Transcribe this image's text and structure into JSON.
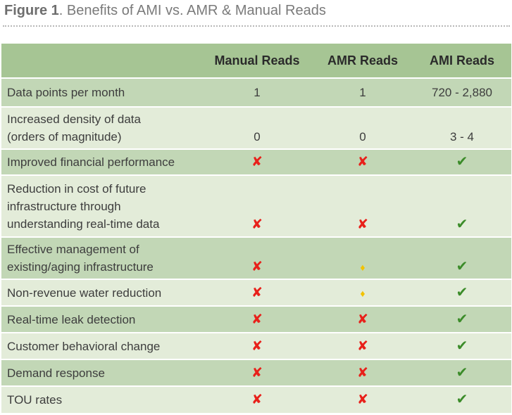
{
  "figure": {
    "label": "Figure 1",
    "title": ". Benefits of AMI vs. AMR & Manual Reads"
  },
  "table": {
    "headers": [
      "",
      "Manual Reads",
      "AMR Reads",
      "AMI Reads"
    ],
    "rows": [
      {
        "label": "Data points per month",
        "cells": [
          "1",
          "1",
          "720 - 2,880"
        ]
      },
      {
        "label": "Increased density of data\n(orders of magnitude)",
        "cells": [
          "0",
          "0",
          "3 - 4"
        ]
      },
      {
        "label": "Improved financial performance",
        "cells": [
          "✘",
          "✘",
          "✔"
        ]
      },
      {
        "label": "Reduction in cost of future\ninfrastructure through\nunderstanding real-time data",
        "cells": [
          "✘",
          "✘",
          "✔"
        ]
      },
      {
        "label": "Effective management of\nexisting/aging infrastructure",
        "cells": [
          "✘",
          "♦",
          "✔"
        ]
      },
      {
        "label": "Non-revenue water reduction",
        "cells": [
          "✘",
          "♦",
          "✔"
        ]
      },
      {
        "label": "Real-time leak detection",
        "cells": [
          "✘",
          "✘",
          "✔"
        ]
      },
      {
        "label": "Customer behavioral change",
        "cells": [
          "✘",
          "✘",
          "✔"
        ]
      },
      {
        "label": "Demand response",
        "cells": [
          "✘",
          "✘",
          "✔"
        ]
      },
      {
        "label": "TOU rates",
        "cells": [
          "✘",
          "✘",
          "✔"
        ]
      }
    ]
  },
  "colors": {
    "header_bg": "#a6c594",
    "row_dark": "#c2d7b6",
    "row_light": "#e3ecd9",
    "cross": "#e8201a",
    "check": "#3c8c2a",
    "partial": "#f2c200"
  },
  "icons": {
    "✘": "cross-icon",
    "✔": "check-icon",
    "♦": "diamond-icon"
  }
}
